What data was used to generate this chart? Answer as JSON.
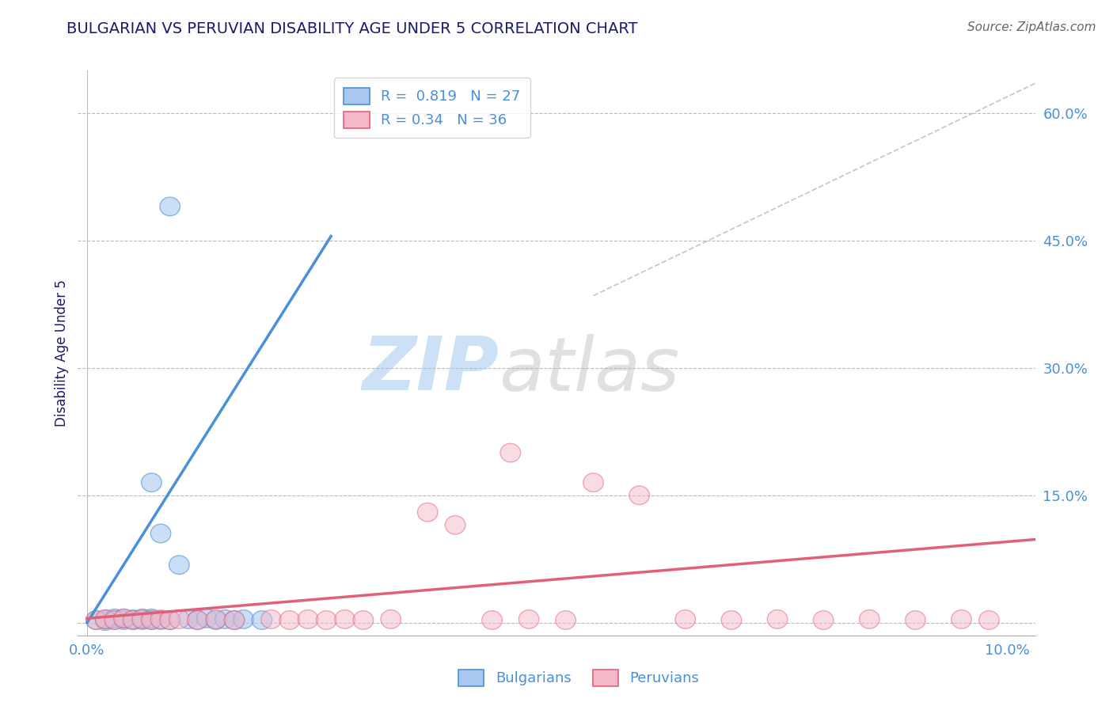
{
  "title": "BULGARIAN VS PERUVIAN DISABILITY AGE UNDER 5 CORRELATION CHART",
  "source": "Source: ZipAtlas.com",
  "ylabel": "Disability Age Under 5",
  "bulgarian_R": 0.819,
  "bulgarian_N": 27,
  "peruvian_R": 0.34,
  "peruvian_N": 36,
  "bulgarian_color": "#A8C8F0",
  "bulgarian_line_color": "#4A90D9",
  "bulgarian_edge_color": "#4A90D9",
  "peruvian_color": "#F5B8C8",
  "peruvian_line_color": "#E0607A",
  "peruvian_edge_color": "#E0607A",
  "bg_color": "#FFFFFF",
  "grid_color": "#BBBBBB",
  "title_color": "#1a1a6e",
  "tick_color": "#4A90D9",
  "ref_line_color": "#BBBBBB",
  "xlim": [
    -0.001,
    0.103
  ],
  "ylim": [
    -0.015,
    0.65
  ],
  "ytick_positions": [
    0.0,
    0.15,
    0.3,
    0.45,
    0.6
  ],
  "ytick_labels": [
    "",
    "15.0%",
    "30.0%",
    "45.0%",
    "60.0%"
  ],
  "xtick_positions": [
    0.0,
    0.02,
    0.04,
    0.06,
    0.08,
    0.1
  ],
  "xtick_labels": [
    "0.0%",
    "",
    "",
    "",
    "",
    "10.0%"
  ],
  "bulg_line_x": [
    0.0,
    0.0265
  ],
  "bulg_line_y": [
    0.0,
    0.455
  ],
  "peru_line_x": [
    0.0,
    0.103
  ],
  "peru_line_y": [
    0.005,
    0.098
  ],
  "ref_line_x": [
    0.055,
    0.103
  ],
  "ref_line_y": [
    0.385,
    0.635
  ],
  "bulg_points": [
    [
      0.001,
      0.002,
      0.002,
      0.003,
      0.003,
      0.004,
      0.004,
      0.005,
      0.005,
      0.006,
      0.006,
      0.007,
      0.007,
      0.008,
      0.008,
      0.009,
      0.01,
      0.011,
      0.012,
      0.013,
      0.014,
      0.015,
      0.016,
      0.017,
      0.019,
      0.007,
      0.009
    ],
    [
      0.003,
      0.002,
      0.004,
      0.003,
      0.005,
      0.003,
      0.005,
      0.003,
      0.004,
      0.003,
      0.005,
      0.003,
      0.005,
      0.003,
      0.105,
      0.003,
      0.068,
      0.004,
      0.003,
      0.005,
      0.003,
      0.004,
      0.003,
      0.004,
      0.003,
      0.165,
      0.49
    ]
  ],
  "peru_points": [
    [
      0.001,
      0.002,
      0.003,
      0.004,
      0.005,
      0.006,
      0.007,
      0.008,
      0.009,
      0.01,
      0.012,
      0.014,
      0.016,
      0.02,
      0.022,
      0.024,
      0.026,
      0.028,
      0.03,
      0.033,
      0.037,
      0.04,
      0.044,
      0.048,
      0.055,
      0.06,
      0.065,
      0.07,
      0.075,
      0.08,
      0.085,
      0.09,
      0.095,
      0.098,
      0.046,
      0.052
    ],
    [
      0.003,
      0.004,
      0.003,
      0.005,
      0.003,
      0.004,
      0.003,
      0.004,
      0.003,
      0.004,
      0.003,
      0.004,
      0.003,
      0.004,
      0.003,
      0.004,
      0.003,
      0.004,
      0.003,
      0.004,
      0.13,
      0.115,
      0.003,
      0.004,
      0.165,
      0.15,
      0.004,
      0.003,
      0.004,
      0.003,
      0.004,
      0.003,
      0.004,
      0.003,
      0.2,
      0.003
    ]
  ],
  "watermark_zip_color": "#C5DCF5",
  "watermark_atlas_color": "#C8C8C8",
  "title_fontsize": 14,
  "source_fontsize": 11,
  "tick_fontsize": 13,
  "ylabel_fontsize": 12,
  "legend_fontsize": 13
}
